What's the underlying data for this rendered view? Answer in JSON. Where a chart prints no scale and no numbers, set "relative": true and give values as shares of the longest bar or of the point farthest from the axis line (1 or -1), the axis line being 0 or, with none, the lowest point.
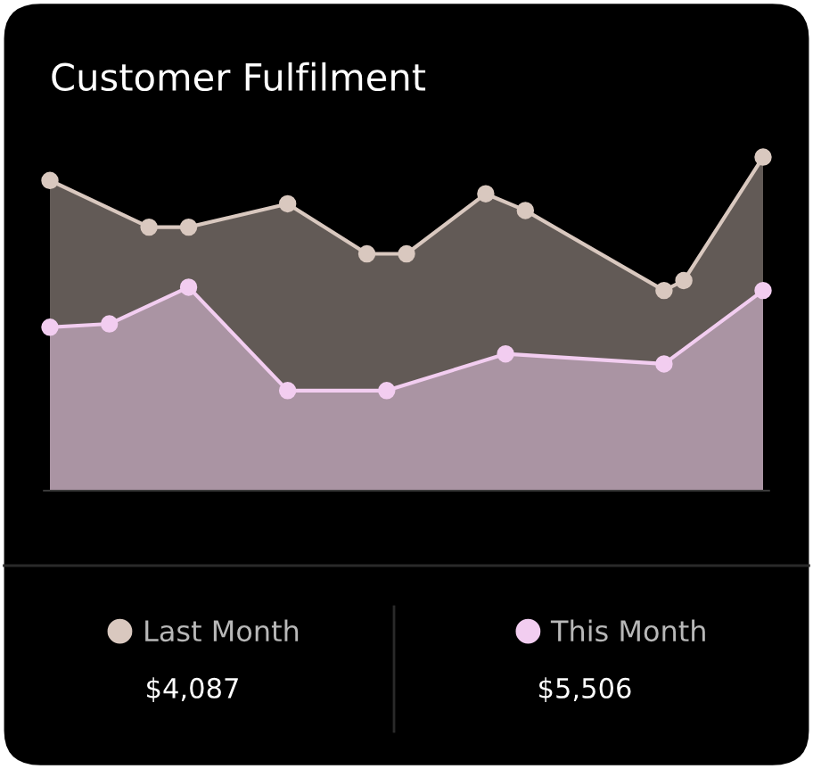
{
  "chart_data": {
    "type": "area",
    "title": "Customer Fulfilment",
    "relative": true,
    "legend": "bottom",
    "marker": "circle",
    "line_style": "solid",
    "categories": [
      null,
      null,
      null,
      null,
      null,
      null,
      null,
      null,
      null,
      null,
      null,
      null,
      null,
      null,
      null,
      null,
      null,
      null,
      null,
      null,
      null,
      null,
      null,
      null,
      null,
      null,
      null,
      null,
      null,
      null,
      null,
      null,
      null,
      null,
      null,
      null,
      null
    ],
    "series": [
      {
        "name": "Last Month",
        "color": "#d9c8bf",
        "values": [
          0.93,
          null,
          null,
          null,
          null,
          0.79,
          null,
          0.79,
          null,
          null,
          null,
          null,
          0.86,
          null,
          null,
          null,
          0.71,
          null,
          0.71,
          null,
          null,
          null,
          0.89,
          null,
          0.84,
          null,
          null,
          null,
          null,
          null,
          null,
          0.6,
          0.63,
          null,
          null,
          null,
          1.0
        ]
      },
      {
        "name": "This Month",
        "color": "#f2cdf0",
        "values": [
          0.49,
          null,
          null,
          0.5,
          null,
          null,
          null,
          0.61,
          null,
          null,
          null,
          null,
          0.3,
          null,
          null,
          null,
          null,
          0.3,
          null,
          null,
          null,
          null,
          null,
          0.41,
          null,
          null,
          null,
          null,
          null,
          null,
          null,
          0.38,
          null,
          null,
          null,
          null,
          0.6
        ]
      }
    ],
    "annotations": [
      "$4,087",
      "$5,506"
    ]
  }
}
